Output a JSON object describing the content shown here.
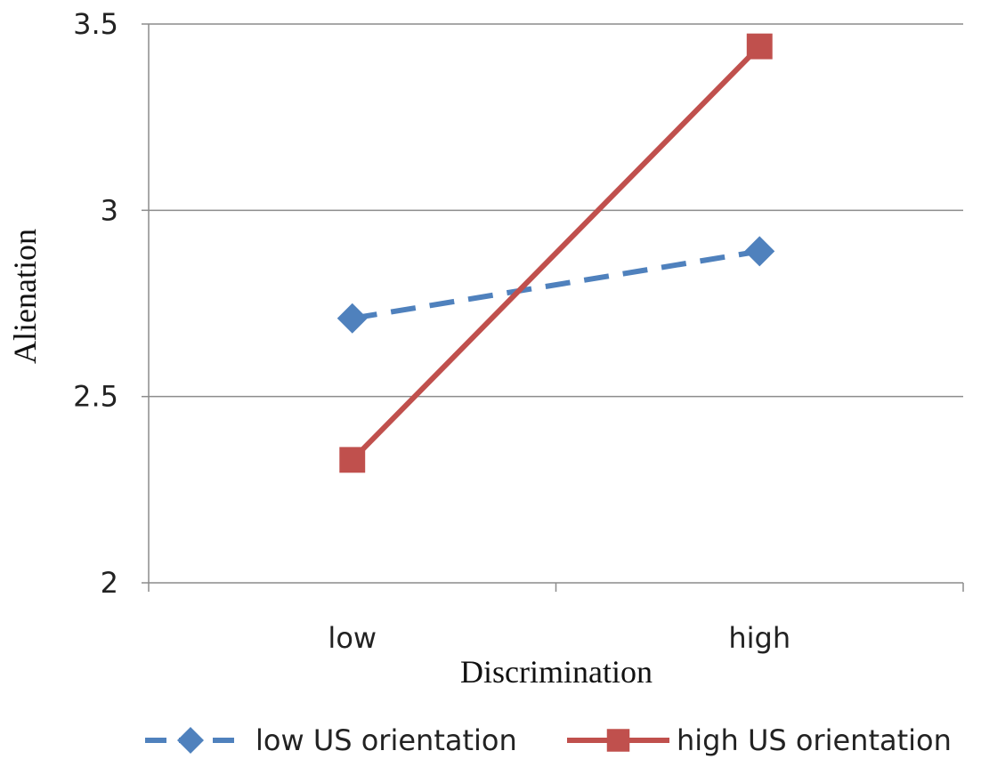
{
  "chart_data": {
    "type": "line",
    "categories": [
      "low",
      "high"
    ],
    "xlabel": "Discrimination",
    "ylabel": "Alienation",
    "ylim": [
      2,
      3.5
    ],
    "yticks": [
      "2",
      "2.5",
      "3",
      "3.5"
    ],
    "grid": true,
    "legend": "bottom",
    "series": [
      {
        "name": "low US orientation",
        "values": [
          2.71,
          2.89
        ],
        "color": "#4F81BD",
        "marker": "diamond",
        "dash": "dashed"
      },
      {
        "name": "high US orientation",
        "values": [
          2.33,
          3.44
        ],
        "color": "#C0504D",
        "marker": "square",
        "dash": "solid"
      }
    ]
  }
}
